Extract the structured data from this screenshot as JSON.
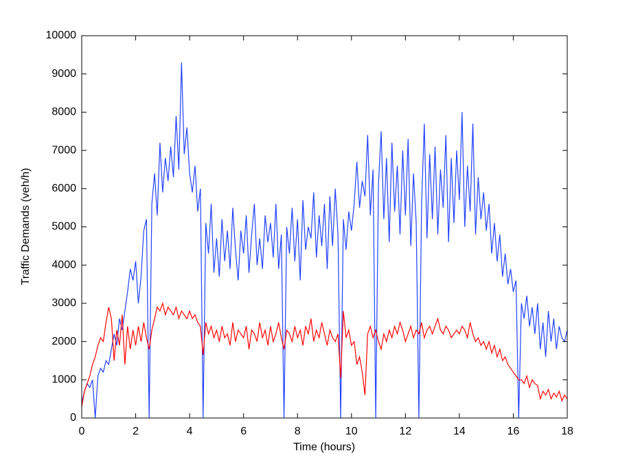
{
  "chart_data": {
    "type": "line",
    "x_label": "Time (hours)",
    "y_label": "Traffic Demands (veh/h)",
    "x": [
      0,
      0.1,
      0.2,
      0.3,
      0.4,
      0.5,
      0.6,
      0.7,
      0.8,
      0.9,
      1,
      1.1,
      1.2,
      1.3,
      1.4,
      1.5,
      1.6,
      1.7,
      1.8,
      1.9,
      2,
      2.1,
      2.2,
      2.3,
      2.4,
      2.5,
      2.6,
      2.7,
      2.8,
      2.9,
      3,
      3.1,
      3.2,
      3.3,
      3.4,
      3.5,
      3.6,
      3.7,
      3.8,
      3.9,
      4,
      4.1,
      4.2,
      4.3,
      4.4,
      4.5,
      4.6,
      4.7,
      4.8,
      4.9,
      5,
      5.1,
      5.2,
      5.3,
      5.4,
      5.5,
      5.6,
      5.7,
      5.8,
      5.9,
      6,
      6.1,
      6.2,
      6.3,
      6.4,
      6.5,
      6.6,
      6.7,
      6.8,
      6.9,
      7,
      7.1,
      7.2,
      7.3,
      7.4,
      7.5,
      7.6,
      7.7,
      7.8,
      7.9,
      8,
      8.1,
      8.2,
      8.3,
      8.4,
      8.5,
      8.6,
      8.7,
      8.8,
      8.9,
      9,
      9.1,
      9.2,
      9.3,
      9.4,
      9.5,
      9.6,
      9.7,
      9.8,
      9.9,
      10,
      10.1,
      10.2,
      10.3,
      10.4,
      10.5,
      10.6,
      10.7,
      10.8,
      10.9,
      11,
      11.1,
      11.2,
      11.3,
      11.4,
      11.5,
      11.6,
      11.7,
      11.8,
      11.9,
      12,
      12.1,
      12.2,
      12.3,
      12.4,
      12.5,
      12.6,
      12.7,
      12.8,
      12.9,
      13,
      13.1,
      13.2,
      13.3,
      13.4,
      13.5,
      13.6,
      13.7,
      13.8,
      13.9,
      14,
      14.1,
      14.2,
      14.3,
      14.4,
      14.5,
      14.6,
      14.7,
      14.8,
      14.9,
      15,
      15.1,
      15.2,
      15.3,
      15.4,
      15.5,
      15.6,
      15.7,
      15.8,
      15.9,
      16,
      16.1,
      16.2,
      16.3,
      16.4,
      16.5,
      16.6,
      16.7,
      16.8,
      16.9,
      17,
      17.1,
      17.2,
      17.3,
      17.4,
      17.5,
      17.6,
      17.7,
      17.8,
      17.9,
      18
    ],
    "series": [
      {
        "color": "#2040ff",
        "values": [
          400,
          700,
          900,
          800,
          1000,
          0,
          1100,
          1300,
          1200,
          1500,
          1400,
          1800,
          2200,
          1900,
          2600,
          2300,
          2800,
          3300,
          3900,
          3600,
          4100,
          3000,
          3700,
          4900,
          5200,
          0,
          5600,
          6400,
          5300,
          7200,
          5900,
          6800,
          6200,
          7100,
          6300,
          7900,
          6500,
          9300,
          6900,
          7600,
          6400,
          5900,
          6600,
          5400,
          6000,
          0,
          5100,
          4300,
          5600,
          3800,
          4700,
          3700,
          5200,
          4100,
          4900,
          3900,
          5500,
          4400,
          3600,
          4900,
          4300,
          5300,
          3800,
          4800,
          5600,
          4000,
          4700,
          3900,
          5300,
          4600,
          5100,
          4200,
          5600,
          3900,
          4800,
          0,
          5000,
          4300,
          5500,
          4100,
          5200,
          3600,
          5700,
          4400,
          5000,
          4700,
          5900,
          4200,
          5300,
          4500,
          5600,
          3900,
          5800,
          4500,
          6000,
          4800,
          0,
          5200,
          4400,
          5400,
          4900,
          5600,
          6700,
          5500,
          6200,
          5800,
          7400,
          5300,
          6500,
          0,
          6100,
          7500,
          5200,
          6800,
          4600,
          7200,
          5400,
          6600,
          4800,
          7000,
          5300,
          7300,
          4500,
          6400,
          5100,
          0,
          5600,
          7700,
          4700,
          6900,
          5200,
          7100,
          4800,
          6500,
          5500,
          7400,
          4600,
          6800,
          5100,
          7000,
          5700,
          8000,
          5000,
          6600,
          5400,
          7700,
          4800,
          6300,
          5200,
          5900,
          4900,
          5600,
          4300,
          5100,
          4100,
          4800,
          3700,
          4300,
          3500,
          3900,
          3300,
          3600,
          0,
          3000,
          2600,
          3200,
          2400,
          2900,
          2200,
          3000,
          1800,
          2500,
          1600,
          2800,
          2000,
          2600,
          1800,
          2400,
          2100,
          2000,
          2300
        ]
      },
      {
        "color": "#ff0000",
        "values": [
          300,
          700,
          900,
          1100,
          1400,
          1600,
          1900,
          2100,
          2000,
          2500,
          2900,
          2600,
          1500,
          2300,
          1900,
          2700,
          1400,
          2400,
          1800,
          2300,
          1900,
          2400,
          2000,
          2500,
          2100,
          1800,
          2300,
          2600,
          2900,
          2800,
          3000,
          2700,
          2900,
          2800,
          2700,
          2900,
          2600,
          2800,
          2700,
          2600,
          2800,
          2600,
          2700,
          2500,
          2400,
          1650,
          2500,
          2200,
          2400,
          2100,
          2300,
          2000,
          2400,
          2100,
          2200,
          1900,
          2500,
          2000,
          2300,
          2200,
          2100,
          2400,
          1800,
          2300,
          2200,
          2000,
          2500,
          2100,
          2300,
          1900,
          2400,
          2000,
          2200,
          2500,
          2100,
          1800,
          2300,
          2200,
          2000,
          2400,
          2100,
          2300,
          1900,
          2400,
          2200,
          2600,
          2000,
          2300,
          2100,
          2500,
          2200,
          1900,
          2300,
          2100,
          2000,
          2200,
          1050,
          2800,
          2100,
          2300,
          1900,
          2000,
          1400,
          1600,
          1200,
          600,
          2200,
          2400,
          2100,
          2300,
          2000,
          1800,
          2200,
          2000,
          2300,
          2100,
          2400,
          2200,
          2500,
          2300,
          2000,
          2200,
          2400,
          2100,
          2300,
          2200,
          2500,
          2100,
          2300,
          2400,
          2200,
          2400,
          2600,
          2300,
          2200,
          2400,
          2300,
          2100,
          2200,
          2300,
          2200,
          2400,
          2300,
          2100,
          2500,
          2200,
          2000,
          2100,
          1900,
          2000,
          1800,
          2000,
          1700,
          1900,
          1600,
          1800,
          1500,
          1600,
          1400,
          1300,
          1200,
          1100,
          1000,
          1000,
          900,
          1100,
          800,
          1000,
          900,
          850,
          500,
          700,
          600,
          750,
          500,
          650,
          550,
          700,
          450,
          600,
          500
        ]
      }
    ],
    "xlim": [
      0,
      18
    ],
    "xticks": [
      0,
      2,
      4,
      6,
      8,
      10,
      12,
      14,
      16,
      18
    ],
    "ylim": [
      0,
      10000
    ],
    "yticks": [
      0,
      1000,
      2000,
      3000,
      4000,
      5000,
      6000,
      7000,
      8000,
      9000,
      10000
    ]
  }
}
